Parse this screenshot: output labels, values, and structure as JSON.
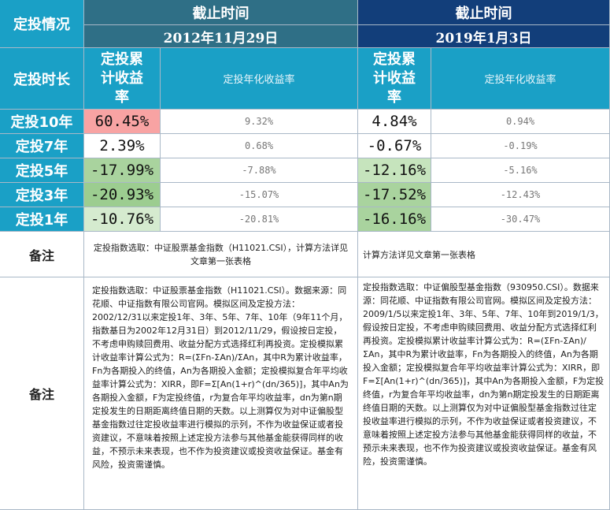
{
  "header": {
    "corner": "定投情况",
    "left_title": "截止时间",
    "left_date": "2012年11月29日",
    "right_title": "截止时间",
    "right_date": "2019年1月3日"
  },
  "subheader": {
    "row_label": "定投时长",
    "left_cum": "定投累计收益率",
    "left_ann": "定投年化收益率",
    "right_cum": "定投累计收益率",
    "right_ann": "定投年化收益率"
  },
  "rows": [
    {
      "label": "定投10年",
      "l_cum": "60.45%",
      "l_ann": "9.32%",
      "r_cum": "4.84%",
      "r_ann": "0.94%",
      "l_color": "#f8a3a3",
      "r_color": "#ffffff"
    },
    {
      "label": "定投7年",
      "l_cum": "2.39%",
      "l_ann": "0.68%",
      "r_cum": "-0.67%",
      "r_ann": "-0.19%",
      "l_color": "#ffffff",
      "r_color": "#ffffff"
    },
    {
      "label": "定投5年",
      "l_cum": "-17.99%",
      "l_ann": "-7.88%",
      "r_cum": "-12.16%",
      "r_ann": "-5.16%",
      "l_color": "#a9d39e",
      "r_color": "#c6e4bd"
    },
    {
      "label": "定投3年",
      "l_cum": "-20.93%",
      "l_ann": "-15.07%",
      "r_cum": "-17.52%",
      "r_ann": "-12.43%",
      "l_color": "#9ccd90",
      "r_color": "#a9d39e"
    },
    {
      "label": "定投1年",
      "l_cum": "-10.76%",
      "l_ann": "-20.81%",
      "r_cum": "-16.16%",
      "r_ann": "-30.47%",
      "l_color": "#d5ebcf",
      "r_color": "#a9d39e"
    }
  ],
  "notes": {
    "label1": "备注",
    "left1": "定投指数选取：中证股票基金指数（H11021.CSI），计算方法详见文章第一张表格",
    "right1": "计算方法详见文章第一张表格",
    "label2": "备注",
    "left2": "定投指数选取：中证股票基金指数（H11021.CSI）。数据来源：同花顺、中证指数有限公司官网。模拟区间及定投方法：2002/12/31以来定投1年、3年、5年、7年、10年（9年11个月，指数基日为2002年12月31日）到2012/11/29，假设按日定投，不考虑申购赎回费用、收益分配方式选择红利再投资。定投模拟累计收益率计算公式为：R=(ΣFn-ΣAn)/ΣAn，其中R为累计收益率，Fn为各期投入的终值，An为各期投入金额；定投模拟复合年平均收益率计算公式为：XIRR，即F=Σ[An(1+r)^(dn/365)]，其中An为各期投入金额，F为定投终值，r为复合年平均收益率，dn为第n期定投发生的日期距离终值日期的天数。以上测算仅为对中证偏股型基金指数过往定投收益率进行模拟的示列，不作为收益保证或者投资建议，不意味着按照上述定投方法参与其他基金能获得同样的收益，不预示未来表现，也不作为投资建议或投资收益保证。基金有风险，投资需谨慎。",
    "right2": "定投指数选取：中证偏股型基金指数（930950.CSI）。数据来源：同花顺、中证指数有限公司官网。模拟区间及定投方法：2009/1/5以来定投1年、3年、5年、7年、10年到2019/1/3，假设按日定投，不考虑申购赎回费用、收益分配方式选择红利再投资。定投模拟累计收益率计算公式为：R=(ΣFn-ΣAn)/ΣAn，其中R为累计收益率，Fn为各期投入的终值，An为各期投入金额；定投模拟复合年平均收益率计算公式为：XIRR，即F=Σ[An(1+r)^(dn/365)]，其中An为各期投入金额，F为定投终值，r为复合年平均收益率，dn为第n期定投发生的日期距离终值日期的天数。以上测算仅为对中证偏股型基金指数过往定投收益率进行模拟的示列，不作为收益保证或者投资建议，不意味着按照上述定投方法参与其他基金能获得同样的收益，不预示未来表现，也不作为投资建议或投资收益保证。基金有风险，投资需谨慎。"
  }
}
